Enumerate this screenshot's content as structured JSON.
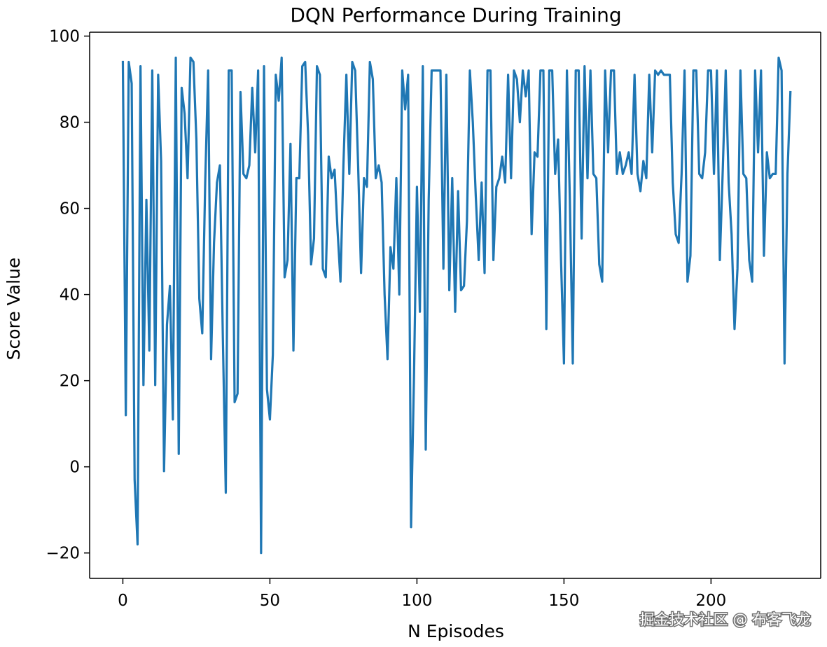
{
  "watermark": "掘金技术社区 @ 布客飞龙",
  "colors": {
    "line": "#1f77b4",
    "axis": "#000000",
    "background": "#ffffff"
  },
  "chart_data": {
    "type": "line",
    "title": "DQN Performance During Training",
    "xlabel": "N Episodes",
    "ylabel": "Score Value",
    "xlim": [
      -11.3,
      237.3
    ],
    "ylim": [
      -25.9,
      100.9
    ],
    "xticks": [
      0,
      50,
      100,
      150,
      200
    ],
    "xtick_labels": [
      "0",
      "50",
      "100",
      "150",
      "200"
    ],
    "yticks": [
      -20,
      0,
      20,
      40,
      60,
      80,
      100
    ],
    "ytick_labels": [
      "−20",
      "0",
      "20",
      "40",
      "60",
      "80",
      "100"
    ],
    "grid": false,
    "series": [
      {
        "name": "score",
        "values": [
          94,
          12,
          94,
          89,
          -3,
          -18,
          93,
          19,
          62,
          27,
          92,
          19,
          91,
          71,
          -1,
          33,
          42,
          11,
          95,
          3,
          88,
          82,
          67,
          95,
          94,
          76,
          39,
          31,
          66,
          92,
          25,
          52,
          66,
          70,
          30,
          -6,
          92,
          92,
          15,
          17,
          87,
          68,
          67,
          70,
          88,
          73,
          92,
          -20,
          93,
          18,
          11,
          26,
          91,
          85,
          95,
          44,
          48,
          75,
          27,
          67,
          67,
          93,
          94,
          77,
          47,
          53,
          93,
          91,
          46,
          44,
          72,
          67,
          69,
          55,
          43,
          70,
          91,
          68,
          94,
          92,
          70,
          45,
          67,
          65,
          94,
          90,
          67,
          70,
          66,
          40,
          25,
          51,
          46,
          67,
          40,
          92,
          83,
          91,
          -14,
          21,
          65,
          36,
          93,
          4,
          62,
          92,
          92,
          92,
          92,
          46,
          91,
          41,
          67,
          36,
          64,
          41,
          42,
          57,
          92,
          80,
          63,
          48,
          66,
          45,
          92,
          92,
          48,
          65,
          67,
          72,
          66,
          91,
          67,
          92,
          90,
          80,
          92,
          86,
          92,
          54,
          73,
          72,
          92,
          92,
          32,
          92,
          92,
          68,
          76,
          48,
          24,
          92,
          62,
          24,
          92,
          92,
          53,
          93,
          67,
          92,
          68,
          67,
          47,
          43,
          92,
          73,
          92,
          92,
          68,
          73,
          68,
          70,
          73,
          68,
          91,
          68,
          64,
          71,
          67,
          91,
          73,
          92,
          91,
          92,
          91,
          91,
          91,
          66,
          54,
          52,
          68,
          92,
          43,
          49,
          92,
          92,
          68,
          67,
          73,
          92,
          92,
          68,
          92,
          48,
          69,
          92,
          66,
          54,
          32,
          46,
          92,
          68,
          67,
          48,
          43,
          92,
          73,
          92,
          49,
          73,
          67,
          68,
          68,
          95,
          92,
          24,
          68,
          87
        ]
      }
    ]
  }
}
